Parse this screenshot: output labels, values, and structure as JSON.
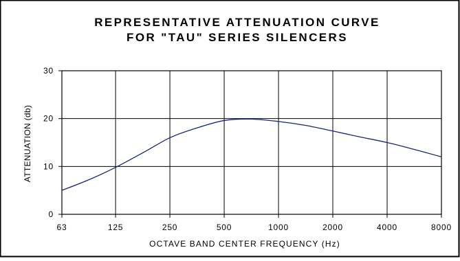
{
  "chart_data": {
    "type": "line",
    "title_lines": [
      "REPRESENTATIVE ATTENUATION CURVE",
      "FOR \"TAU\" SERIES SILENCERS"
    ],
    "xlabel": "OCTAVE BAND CENTER FREQUENCY (Hz)",
    "ylabel": "ATTENUATION (db)",
    "x_scale": "log2",
    "x_ticks": [
      63,
      125,
      250,
      500,
      1000,
      2000,
      4000,
      8000
    ],
    "x_tick_labels": [
      "63",
      "125",
      "250",
      "500",
      "1000",
      "2000",
      "4000",
      "8000"
    ],
    "y_ticks": [
      0,
      10,
      20,
      30
    ],
    "y_tick_labels": [
      "0",
      "10",
      "20",
      "30"
    ],
    "xlim": [
      63,
      8000
    ],
    "ylim": [
      0,
      30
    ],
    "grid": true,
    "series": [
      {
        "x": [
          63,
          90,
          125,
          180,
          250,
          350,
          500,
          700,
          1000,
          1400,
          2000,
          2800,
          4000,
          5600,
          8000
        ],
        "y": [
          5,
          7.3,
          9.8,
          13,
          16,
          18,
          19.6,
          19.9,
          19.4,
          18.6,
          17.4,
          16.2,
          15,
          13.6,
          12
        ],
        "color": "#1a237e"
      }
    ]
  }
}
